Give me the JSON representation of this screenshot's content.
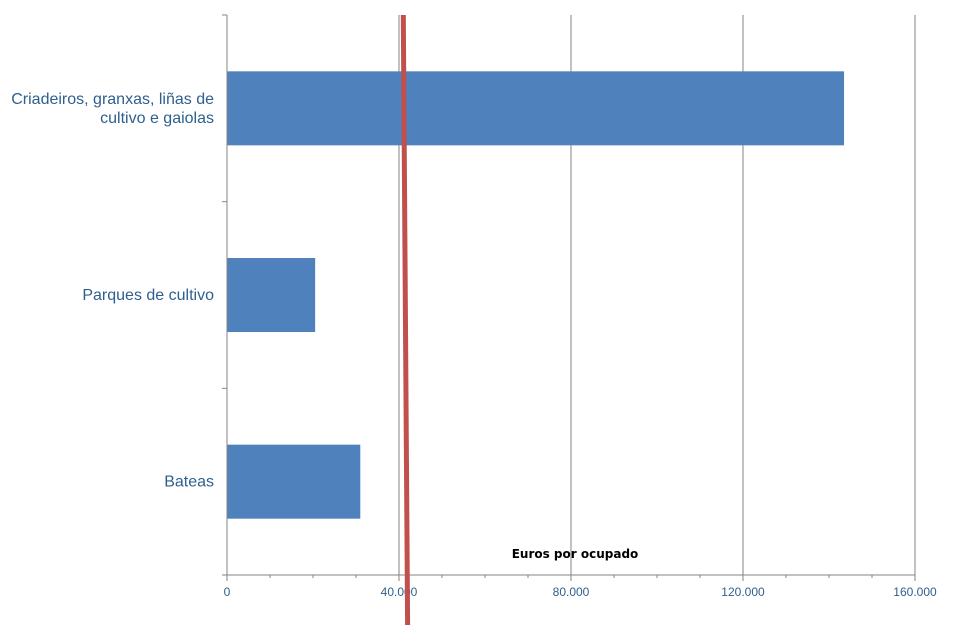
{
  "chart_data": {
    "type": "bar",
    "orientation": "horizontal",
    "categories": [
      "Criadeiros, granxas, liñas de cultivo e gaiolas",
      "Parques de cultivo",
      "Bateas"
    ],
    "category_label_lines": [
      [
        "Criadeiros, granxas, liñas de",
        "cultivo e gaiolas"
      ],
      [
        "Parques de cultivo"
      ],
      [
        "Bateas"
      ]
    ],
    "values": [
      143500,
      20500,
      31000
    ],
    "xlabel": "Euros por ocupado",
    "xlim": [
      0,
      160000
    ],
    "xticks": [
      0,
      40000,
      80000,
      120000,
      160000
    ],
    "xtick_labels": [
      "0",
      "40.000",
      "80.000",
      "120.000",
      "160.000"
    ],
    "reference_line": {
      "value_top": 41000,
      "value_bottom": 42000,
      "color": "#c0504d"
    },
    "grid": true,
    "bar_color": "#4f81bd",
    "gridline_color": "#868686",
    "label_color": "#2e5f8e"
  }
}
